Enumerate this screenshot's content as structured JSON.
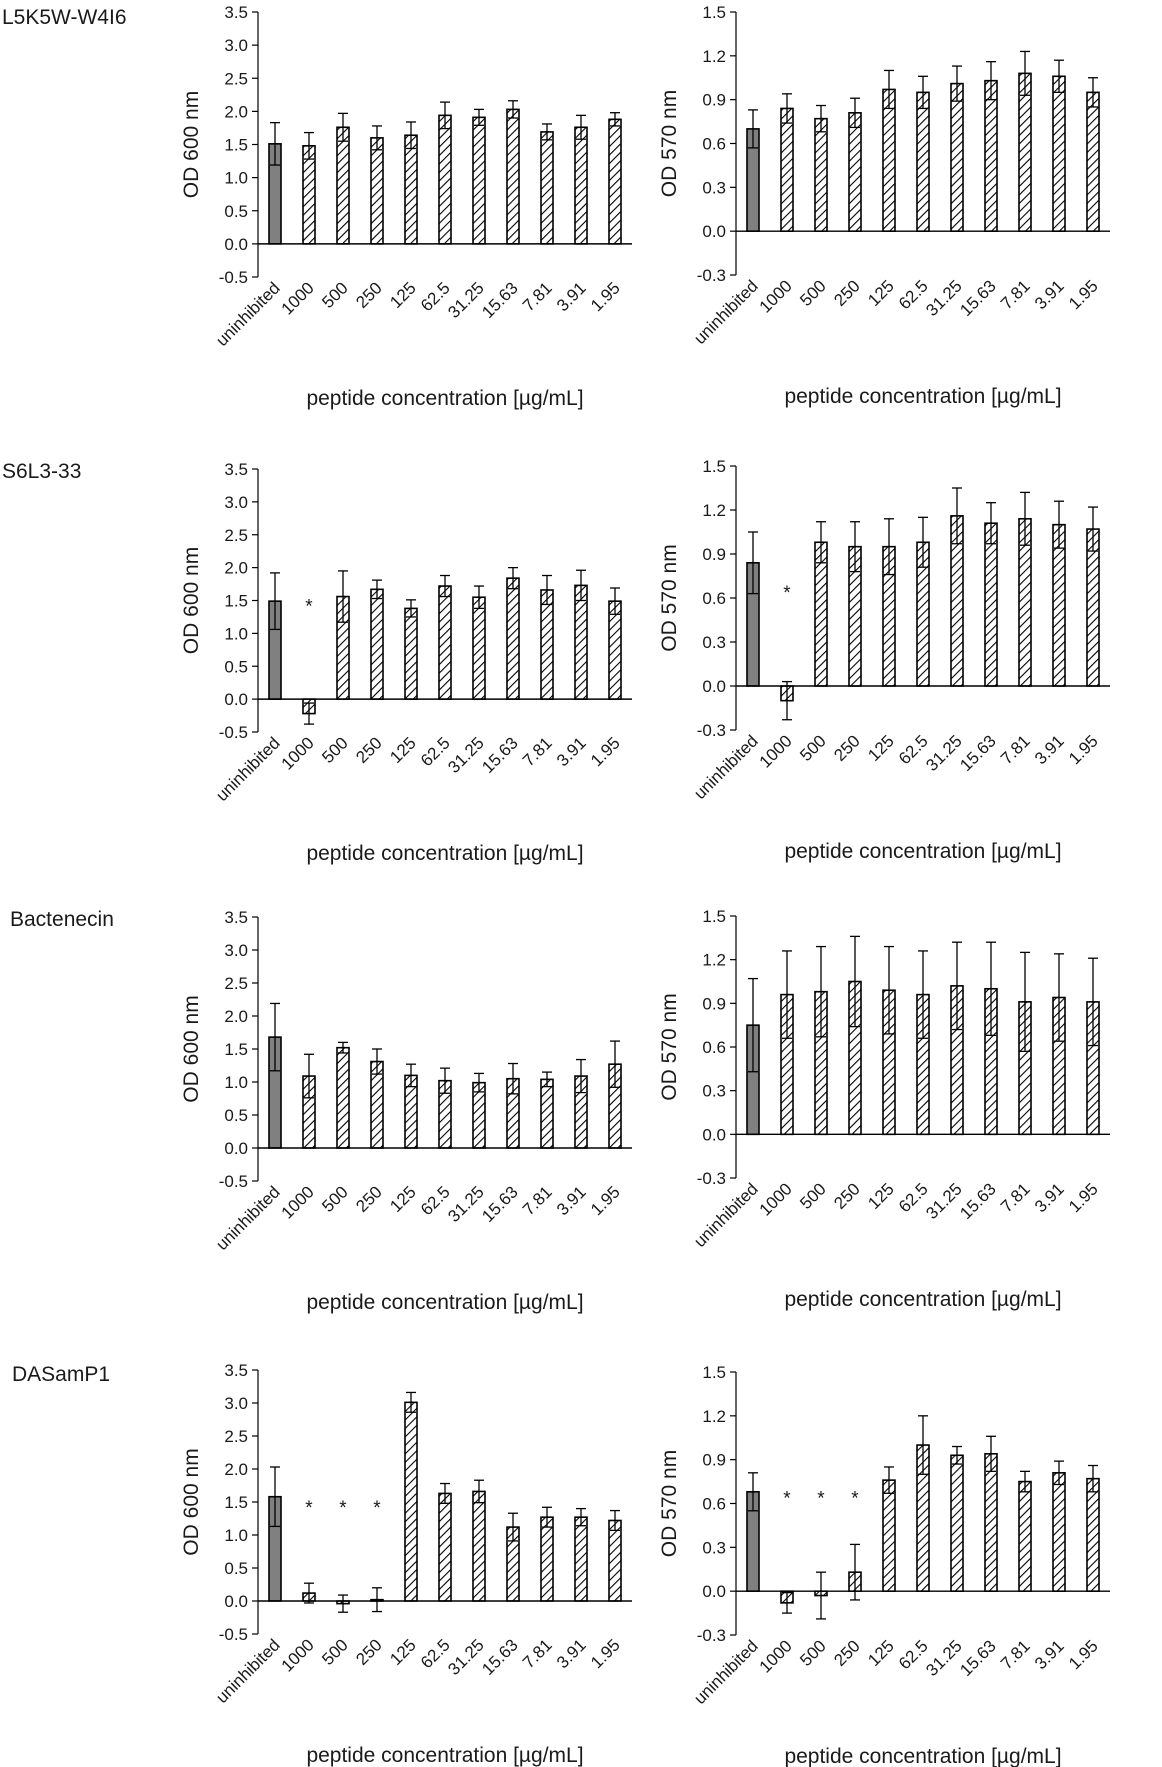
{
  "figure": {
    "row_labels": [
      "L5K5W-W4I6",
      "S6L3-33",
      "Bactenecin",
      "DASamP1"
    ]
  },
  "colors": {
    "control_bar": "#808080",
    "hatch_line": "#000000",
    "axis": "#000000"
  },
  "chart_data": [
    {
      "type": "bar",
      "panel": "L5K5W-W4I6 OD 600",
      "categories": [
        "uninhibited",
        "1000",
        "500",
        "250",
        "125",
        "62.5",
        "31.25",
        "15.63",
        "7.81",
        "3.91",
        "1.95"
      ],
      "values": [
        1.51,
        1.48,
        1.76,
        1.6,
        1.64,
        1.94,
        1.91,
        2.03,
        1.69,
        1.76,
        1.88
      ],
      "errors": [
        0.32,
        0.2,
        0.21,
        0.18,
        0.2,
        0.2,
        0.12,
        0.13,
        0.12,
        0.18,
        0.1
      ],
      "significance": [
        "",
        "",
        "",
        "",
        "",
        "",
        "",
        "",
        "",
        "",
        ""
      ],
      "ylabel": "OD 600 nm",
      "xlabel": "peptide concentration [µg/mL]",
      "ylim": [
        -0.5,
        3.5
      ],
      "yticks": [
        "-0.5",
        "0.0",
        "0.5",
        "1.0",
        "1.5",
        "2.0",
        "2.5",
        "3.0",
        "3.5"
      ],
      "grid": false,
      "legend": "none"
    },
    {
      "type": "bar",
      "panel": "L5K5W-W4I6 OD 570",
      "categories": [
        "uninhibited",
        "1000",
        "500",
        "250",
        "125",
        "62.5",
        "31.25",
        "15.63",
        "7.81",
        "3.91",
        "1.95"
      ],
      "values": [
        0.7,
        0.84,
        0.77,
        0.81,
        0.97,
        0.95,
        1.01,
        1.03,
        1.08,
        1.06,
        0.95
      ],
      "errors": [
        0.13,
        0.1,
        0.09,
        0.1,
        0.13,
        0.11,
        0.12,
        0.13,
        0.15,
        0.11,
        0.1
      ],
      "significance": [
        "",
        "",
        "",
        "",
        "",
        "",
        "",
        "",
        "",
        "",
        ""
      ],
      "ylabel": "OD 570 nm",
      "xlabel": "peptide concentration [µg/mL]",
      "ylim": [
        -0.3,
        1.5
      ],
      "yticks": [
        "-0.3",
        "0.0",
        "0.3",
        "0.6",
        "0.9",
        "1.2",
        "1.5"
      ],
      "grid": false,
      "legend": "none"
    },
    {
      "type": "bar",
      "panel": "S6L3-33 OD 600",
      "categories": [
        "uninhibited",
        "1000",
        "500",
        "250",
        "125",
        "62.5",
        "31.25",
        "15.63",
        "7.81",
        "3.91",
        "1.95"
      ],
      "values": [
        1.49,
        -0.22,
        1.56,
        1.67,
        1.38,
        1.72,
        1.55,
        1.84,
        1.66,
        1.73,
        1.49
      ],
      "errors": [
        0.43,
        0.16,
        0.39,
        0.14,
        0.13,
        0.16,
        0.17,
        0.16,
        0.22,
        0.23,
        0.2
      ],
      "significance": [
        "",
        "*",
        "",
        "",
        "",
        "",
        "",
        "",
        "",
        "",
        ""
      ],
      "ylabel": "OD 600 nm",
      "xlabel": "peptide concentration [µg/mL]",
      "ylim": [
        -0.5,
        3.5
      ],
      "yticks": [
        "-0.5",
        "0.0",
        "0.5",
        "1.0",
        "1.5",
        "2.0",
        "2.5",
        "3.0",
        "3.5"
      ],
      "grid": false,
      "legend": "none"
    },
    {
      "type": "bar",
      "panel": "S6L3-33 OD 570",
      "categories": [
        "uninhibited",
        "1000",
        "500",
        "250",
        "125",
        "62.5",
        "31.25",
        "15.63",
        "7.81",
        "3.91",
        "1.95"
      ],
      "values": [
        0.84,
        -0.1,
        0.98,
        0.95,
        0.95,
        0.98,
        1.16,
        1.11,
        1.14,
        1.1,
        1.07
      ],
      "errors": [
        0.21,
        0.13,
        0.14,
        0.17,
        0.19,
        0.17,
        0.19,
        0.14,
        0.18,
        0.16,
        0.15
      ],
      "significance": [
        "",
        "*",
        "",
        "",
        "",
        "",
        "",
        "",
        "",
        "",
        ""
      ],
      "ylabel": "OD 570 nm",
      "xlabel": "peptide concentration [µg/mL]",
      "ylim": [
        -0.3,
        1.5
      ],
      "yticks": [
        "-0.3",
        "0.0",
        "0.3",
        "0.6",
        "0.9",
        "1.2",
        "1.5"
      ],
      "grid": false,
      "legend": "none"
    },
    {
      "type": "bar",
      "panel": "Bactenecin OD 600",
      "categories": [
        "uninhibited",
        "1000",
        "500",
        "250",
        "125",
        "62.5",
        "31.25",
        "15.63",
        "7.81",
        "3.91",
        "1.95"
      ],
      "values": [
        1.68,
        1.09,
        1.52,
        1.31,
        1.1,
        1.02,
        0.99,
        1.05,
        1.04,
        1.09,
        1.27
      ],
      "errors": [
        0.51,
        0.33,
        0.08,
        0.19,
        0.17,
        0.19,
        0.14,
        0.23,
        0.11,
        0.25,
        0.35
      ],
      "significance": [
        "",
        "",
        "",
        "",
        "",
        "",
        "",
        "",
        "",
        "",
        ""
      ],
      "ylabel": "OD 600 nm",
      "xlabel": "peptide concentration [µg/mL]",
      "ylim": [
        -0.5,
        3.5
      ],
      "yticks": [
        "-0.5",
        "0.0",
        "0.5",
        "1.0",
        "1.5",
        "2.0",
        "2.5",
        "3.0",
        "3.5"
      ],
      "grid": false,
      "legend": "none"
    },
    {
      "type": "bar",
      "panel": "Bactenecin OD 570",
      "categories": [
        "uninhibited",
        "1000",
        "500",
        "250",
        "125",
        "62.5",
        "31.25",
        "15.63",
        "7.81",
        "3.91",
        "1.95"
      ],
      "values": [
        0.75,
        0.96,
        0.98,
        1.05,
        0.99,
        0.96,
        1.02,
        1.0,
        0.91,
        0.94,
        0.91
      ],
      "errors": [
        0.32,
        0.3,
        0.31,
        0.31,
        0.3,
        0.3,
        0.3,
        0.32,
        0.34,
        0.3,
        0.3
      ],
      "significance": [
        "",
        "",
        "",
        "",
        "",
        "",
        "",
        "",
        "",
        "",
        ""
      ],
      "ylabel": "OD 570 nm",
      "xlabel": "peptide concentration [µg/mL]",
      "ylim": [
        -0.3,
        1.5
      ],
      "yticks": [
        "-0.3",
        "0.0",
        "0.3",
        "0.6",
        "0.9",
        "1.2",
        "1.5"
      ],
      "grid": false,
      "legend": "none"
    },
    {
      "type": "bar",
      "panel": "DASamP1 OD 600",
      "categories": [
        "uninhibited",
        "1000",
        "500",
        "250",
        "125",
        "62.5",
        "31.25",
        "15.63",
        "7.81",
        "3.91",
        "1.95"
      ],
      "values": [
        1.58,
        0.12,
        -0.04,
        0.02,
        3.01,
        1.63,
        1.66,
        1.12,
        1.27,
        1.27,
        1.22
      ],
      "errors": [
        0.45,
        0.15,
        0.13,
        0.18,
        0.15,
        0.15,
        0.17,
        0.21,
        0.15,
        0.13,
        0.15
      ],
      "significance": [
        "",
        "*",
        "*",
        "*",
        "",
        "",
        "",
        "",
        "",
        "",
        ""
      ],
      "ylabel": "OD 600 nm",
      "xlabel": "peptide concentration [µg/mL]",
      "ylim": [
        -0.5,
        3.5
      ],
      "yticks": [
        "-0.5",
        "0.0",
        "0.5",
        "1.0",
        "1.5",
        "2.0",
        "2.5",
        "3.0",
        "3.5"
      ],
      "grid": false,
      "legend": "none"
    },
    {
      "type": "bar",
      "panel": "DASamP1 OD 570",
      "categories": [
        "uninhibited",
        "1000",
        "500",
        "250",
        "125",
        "62.5",
        "31.25",
        "15.63",
        "7.81",
        "3.91",
        "1.95"
      ],
      "values": [
        0.68,
        -0.08,
        -0.03,
        0.13,
        0.76,
        1.0,
        0.93,
        0.94,
        0.75,
        0.81,
        0.77
      ],
      "errors": [
        0.13,
        0.07,
        0.16,
        0.19,
        0.09,
        0.2,
        0.06,
        0.12,
        0.07,
        0.08,
        0.09
      ],
      "significance": [
        "",
        "*",
        "*",
        "*",
        "",
        "",
        "",
        "",
        "",
        "",
        ""
      ],
      "ylabel": "OD 570 nm",
      "xlabel": "peptide concentration [µg/mL]",
      "ylim": [
        -0.3,
        1.5
      ],
      "yticks": [
        "-0.3",
        "0.0",
        "0.3",
        "0.6",
        "0.9",
        "1.2",
        "1.5"
      ],
      "grid": false,
      "legend": "none"
    }
  ]
}
